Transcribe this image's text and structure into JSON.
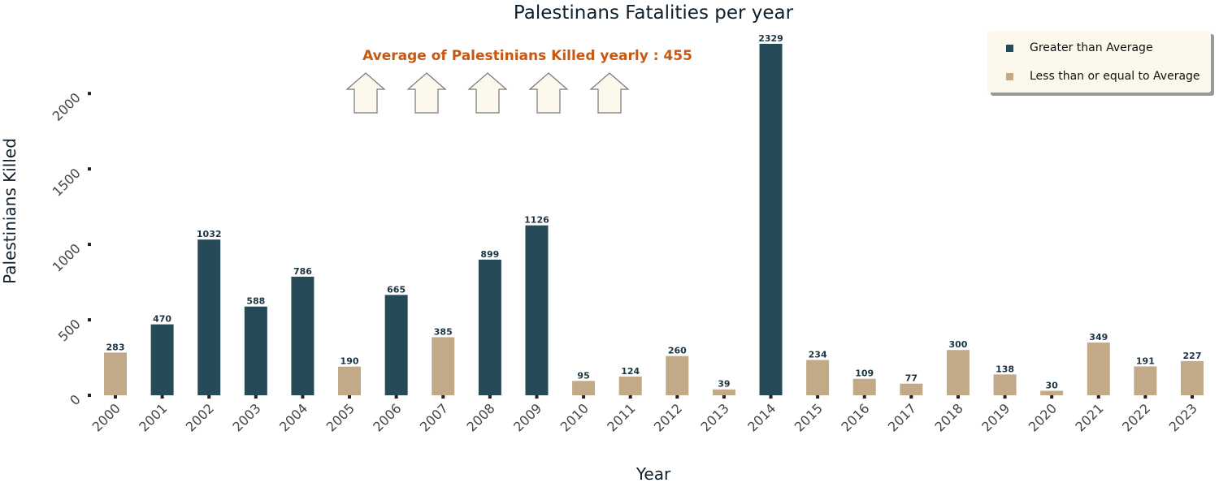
{
  "chart_data": {
    "type": "bar",
    "title": "Palestinans Fatalities per year",
    "xlabel": "Year",
    "ylabel": "Palestinians Killed",
    "categories": [
      "2000",
      "2001",
      "2002",
      "2003",
      "2004",
      "2005",
      "2006",
      "2007",
      "2008",
      "2009",
      "2010",
      "2011",
      "2012",
      "2013",
      "2014",
      "2015",
      "2016",
      "2017",
      "2018",
      "2019",
      "2020",
      "2021",
      "2022",
      "2023"
    ],
    "values": [
      283,
      470,
      1032,
      588,
      786,
      190,
      665,
      385,
      899,
      1126,
      95,
      124,
      260,
      39,
      2329,
      234,
      109,
      77,
      300,
      138,
      30,
      349,
      191,
      227
    ],
    "ylim": [
      0,
      2329
    ],
    "yticks": [
      0,
      500,
      1000,
      1500,
      2000
    ],
    "average": 455,
    "annotation": "Average of Palestinians Killed yearly : 455",
    "arrow_count": 5,
    "legend": {
      "placement": "top-right",
      "items": [
        {
          "label": "Greater than Average",
          "color": "#264a57"
        },
        {
          "label": "Less than or equal to Average",
          "color": "#c2a987"
        }
      ]
    },
    "colors": {
      "above": "#264a57",
      "below": "#c2a987",
      "annotation": "#c8580f",
      "arrow_fill": "#fdf8ec",
      "legend_bg": "#fdf8ec"
    },
    "grid": false
  }
}
